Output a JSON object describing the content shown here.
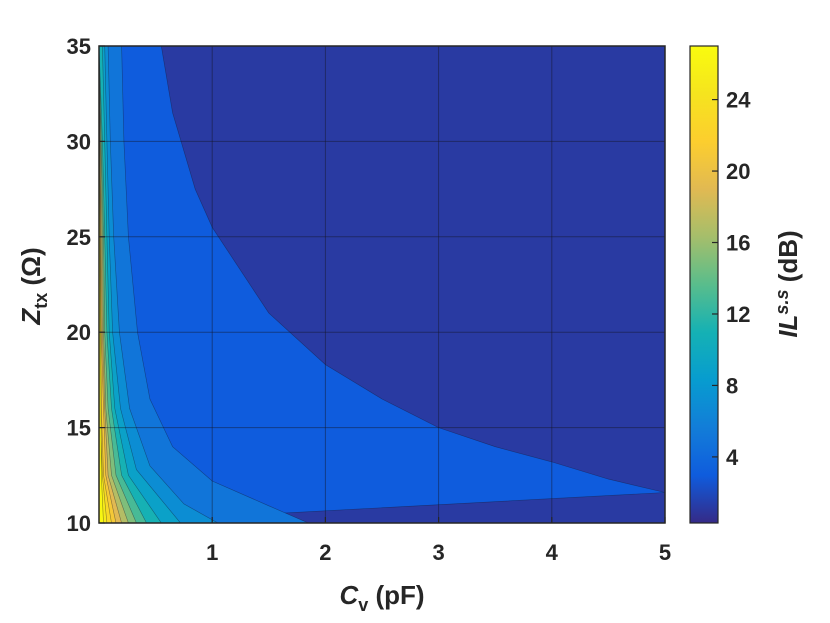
{
  "chart_data": {
    "type": "filled-contour",
    "xlabel": {
      "main": "C",
      "sub": "v",
      "unit": " (pF)"
    },
    "ylabel": {
      "main": "Z",
      "sub": "tx",
      "unit": " (Ω)"
    },
    "colorbar_label": {
      "main": "IL",
      "sup": "s.s",
      "unit": " (dB)"
    },
    "xlim": [
      0.0,
      5.0
    ],
    "ylim": [
      10,
      35
    ],
    "xticks": [
      "1",
      "2",
      "3",
      "4",
      "5"
    ],
    "xtick_values": [
      1,
      2,
      3,
      4,
      5
    ],
    "yticks": [
      "10",
      "15",
      "20",
      "25",
      "30",
      "35"
    ],
    "ytick_values": [
      10,
      15,
      20,
      25,
      30,
      35
    ],
    "colorbar_ticks": [
      "4",
      "8",
      "12",
      "16",
      "20",
      "24"
    ],
    "colorbar_tick_values": [
      4,
      8,
      12,
      16,
      20,
      24
    ],
    "colorbar_range": [
      0.3,
      27
    ],
    "colormap": "parula",
    "grid": true,
    "contour_levels": [
      2,
      4,
      6,
      8,
      10,
      12,
      14,
      16,
      18,
      20,
      22,
      24,
      26
    ],
    "contour_boundaries": [
      {
        "level": 2,
        "points": [
          [
            0.55,
            35
          ],
          [
            0.65,
            31.5
          ],
          [
            0.85,
            27.5
          ],
          [
            1.0,
            25.5
          ],
          [
            1.5,
            21
          ],
          [
            2.0,
            18.3
          ],
          [
            2.5,
            16.5
          ],
          [
            3.0,
            15.0
          ],
          [
            3.5,
            14.0
          ],
          [
            4.0,
            13.2
          ],
          [
            4.5,
            12.3
          ],
          [
            5.0,
            11.6
          ]
        ]
      },
      {
        "level": 4,
        "points": [
          [
            0.2,
            35
          ],
          [
            0.22,
            30
          ],
          [
            0.26,
            25
          ],
          [
            0.34,
            20
          ],
          [
            0.45,
            16.5
          ],
          [
            0.65,
            14.0
          ],
          [
            1.0,
            12.2
          ],
          [
            1.5,
            10.9
          ],
          [
            1.85,
            10.0
          ]
        ]
      },
      {
        "level": 6,
        "points": [
          [
            0.08,
            35
          ],
          [
            0.1,
            30
          ],
          [
            0.13,
            25
          ],
          [
            0.18,
            20
          ],
          [
            0.27,
            16
          ],
          [
            0.45,
            13
          ],
          [
            0.75,
            11
          ],
          [
            1.05,
            10.0
          ]
        ]
      },
      {
        "level": 8,
        "points": [
          [
            0.05,
            35
          ],
          [
            0.07,
            30
          ],
          [
            0.09,
            25
          ],
          [
            0.12,
            20
          ],
          [
            0.19,
            16
          ],
          [
            0.33,
            12.8
          ],
          [
            0.72,
            10.0
          ]
        ]
      },
      {
        "level": 10,
        "points": [
          [
            0.03,
            35
          ],
          [
            0.05,
            30
          ],
          [
            0.07,
            25
          ],
          [
            0.09,
            20
          ],
          [
            0.14,
            16
          ],
          [
            0.26,
            12.5
          ],
          [
            0.55,
            10.0
          ]
        ]
      },
      {
        "level": 12,
        "points": [
          [
            0.03,
            30
          ],
          [
            0.05,
            25
          ],
          [
            0.07,
            20
          ],
          [
            0.11,
            16
          ],
          [
            0.2,
            12.5
          ],
          [
            0.42,
            10.0
          ]
        ]
      },
      {
        "level": 14,
        "points": [
          [
            0.02,
            30
          ],
          [
            0.04,
            25
          ],
          [
            0.05,
            20
          ],
          [
            0.08,
            16
          ],
          [
            0.15,
            12.5
          ],
          [
            0.33,
            10.0
          ]
        ]
      },
      {
        "level": 16,
        "points": [
          [
            0.03,
            25
          ],
          [
            0.04,
            20
          ],
          [
            0.06,
            16
          ],
          [
            0.11,
            12.5
          ],
          [
            0.26,
            10.0
          ]
        ]
      },
      {
        "level": 18,
        "points": [
          [
            0.02,
            25
          ],
          [
            0.03,
            20
          ],
          [
            0.05,
            16
          ],
          [
            0.08,
            12.5
          ],
          [
            0.2,
            10.0
          ]
        ]
      },
      {
        "level": 20,
        "points": [
          [
            0.02,
            20
          ],
          [
            0.04,
            16
          ],
          [
            0.06,
            12.5
          ],
          [
            0.15,
            10.0
          ]
        ]
      },
      {
        "level": 22,
        "points": [
          [
            0.02,
            16
          ],
          [
            0.04,
            12.5
          ],
          [
            0.11,
            10.0
          ]
        ]
      },
      {
        "level": 24,
        "points": [
          [
            0.01,
            16
          ],
          [
            0.03,
            12.5
          ],
          [
            0.07,
            10.0
          ]
        ]
      },
      {
        "level": 26,
        "points": [
          [
            0.02,
            12.5
          ],
          [
            0.04,
            10.0
          ]
        ]
      }
    ]
  }
}
